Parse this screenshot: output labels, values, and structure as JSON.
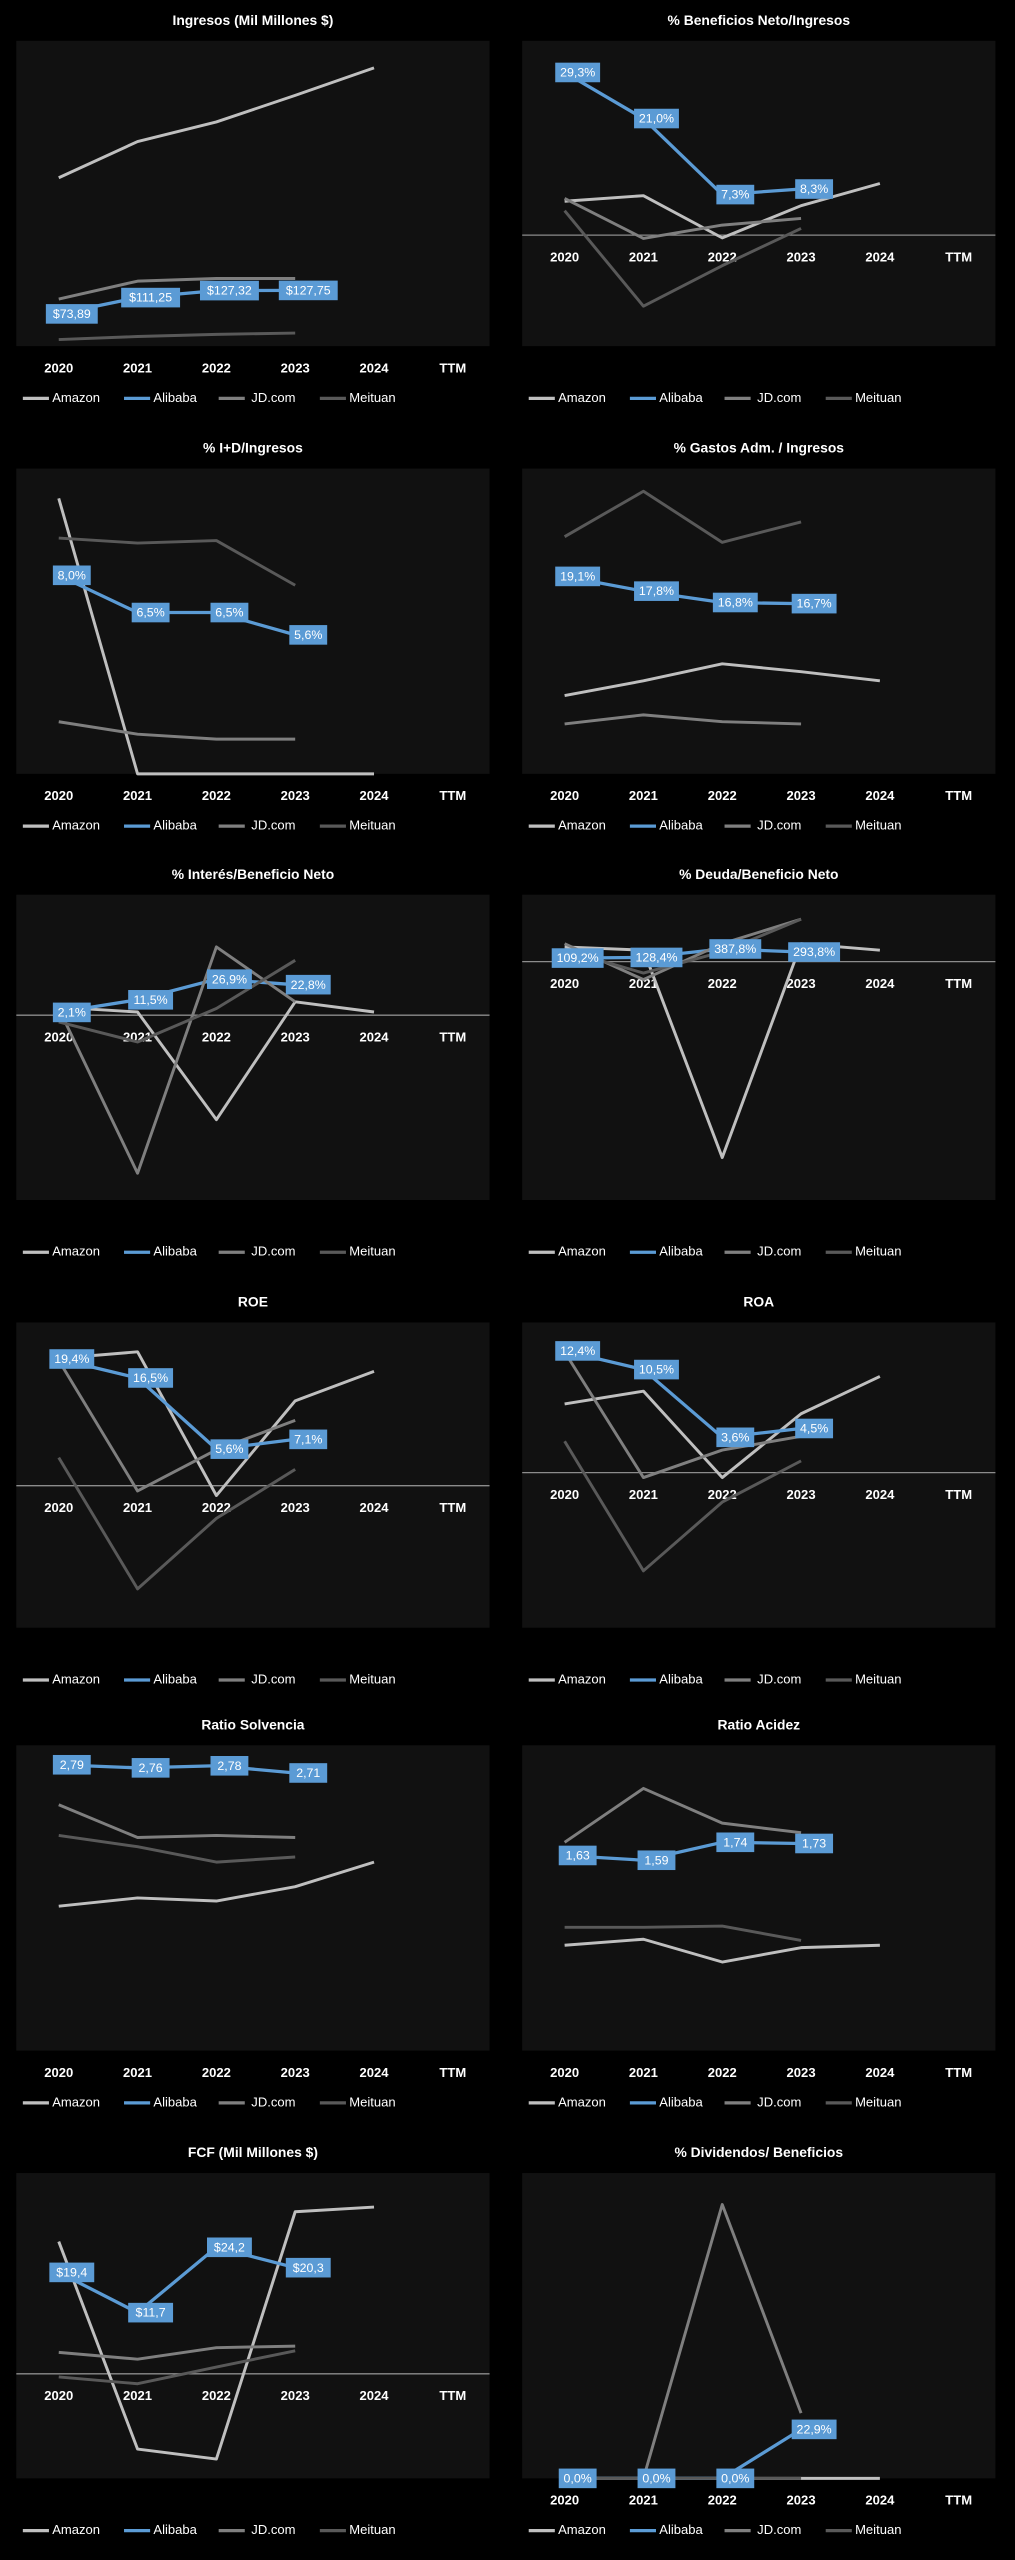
{
  "chart_data": [
    {
      "type": "line",
      "title": "Ingresos (Mil Millones $)",
      "categories": [
        "2020",
        "2021",
        "2022",
        "2023",
        "2024",
        "TTM"
      ],
      "ylim": [
        0,
        700
      ],
      "series": [
        {
          "name": "Amazon",
          "color": "#bfbfbf",
          "values": [
            386,
            469,
            514,
            575,
            638,
            null
          ]
        },
        {
          "name": "Alibaba",
          "color": "#5b9bd5",
          "values": [
            73.89,
            111.25,
            127.32,
            127.75,
            null,
            null
          ],
          "value_labels": [
            "$73,89",
            "$111,25",
            "$127,32",
            "$127,75",
            null,
            null
          ]
        },
        {
          "name": "JD.com",
          "color": "#7f7f7f",
          "values": [
            108,
            149,
            155,
            155,
            null,
            null
          ]
        },
        {
          "name": "Meituan",
          "color": "#595959",
          "values": [
            15,
            22,
            27,
            30,
            null,
            null
          ]
        }
      ]
    },
    {
      "type": "line",
      "title": "% Beneficios Neto/Ingresos",
      "categories": [
        "2020",
        "2021",
        "2022",
        "2023",
        "2024",
        "TTM"
      ],
      "ylim": [
        -20,
        35
      ],
      "series": [
        {
          "name": "Amazon",
          "color": "#bfbfbf",
          "values": [
            6.1,
            7.1,
            -0.5,
            5.3,
            9.3,
            null
          ]
        },
        {
          "name": "Alibaba",
          "color": "#5b9bd5",
          "values": [
            29.3,
            21.0,
            7.3,
            8.3,
            null,
            null
          ],
          "value_labels": [
            "29,3%",
            "21,0%",
            "7,3%",
            "8,3%",
            null,
            null
          ]
        },
        {
          "name": "JD.com",
          "color": "#7f7f7f",
          "values": [
            6.6,
            -0.6,
            1.8,
            3.0,
            null,
            null
          ]
        },
        {
          "name": "Meituan",
          "color": "#595959",
          "values": [
            4.4,
            -12.8,
            -5.5,
            1.2,
            null,
            null
          ]
        }
      ]
    },
    {
      "type": "line",
      "title": "% I+D/Ingresos",
      "categories": [
        "2020",
        "2021",
        "2022",
        "2023",
        "2024",
        "TTM"
      ],
      "ylim": [
        0,
        12.3
      ],
      "series": [
        {
          "name": "Amazon",
          "color": "#bfbfbf",
          "values": [
            11.1,
            0,
            0,
            0,
            0,
            null
          ]
        },
        {
          "name": "Alibaba",
          "color": "#5b9bd5",
          "values": [
            8.0,
            6.5,
            6.5,
            5.6,
            null,
            null
          ],
          "value_labels": [
            "8,0%",
            "6,5%",
            "6,5%",
            "5,6%",
            null,
            null
          ]
        },
        {
          "name": "JD.com",
          "color": "#7f7f7f",
          "values": [
            2.1,
            1.6,
            1.4,
            1.4,
            null,
            null
          ]
        },
        {
          "name": "Meituan",
          "color": "#595959",
          "values": [
            9.5,
            9.3,
            9.4,
            7.6,
            null,
            null
          ]
        }
      ]
    },
    {
      "type": "line",
      "title": "% Gastos Adm. / Ingresos",
      "categories": [
        "2020",
        "2021",
        "2022",
        "2023",
        "2024",
        "TTM"
      ],
      "ylim": [
        1.7,
        28.6
      ],
      "series": [
        {
          "name": "Amazon",
          "color": "#bfbfbf",
          "values": [
            8.6,
            9.9,
            11.4,
            10.7,
            9.9,
            null
          ]
        },
        {
          "name": "Alibaba",
          "color": "#5b9bd5",
          "values": [
            19.1,
            17.8,
            16.8,
            16.7,
            null,
            null
          ],
          "value_labels": [
            "19,1%",
            "17,8%",
            "16,8%",
            "16,7%",
            null,
            null
          ]
        },
        {
          "name": "JD.com",
          "color": "#7f7f7f",
          "values": [
            6.1,
            6.9,
            6.3,
            6.1,
            null,
            null
          ]
        },
        {
          "name": "Meituan",
          "color": "#595959",
          "values": [
            22.6,
            26.6,
            22.1,
            23.9,
            null,
            null
          ]
        }
      ]
    },
    {
      "type": "line",
      "title": "% Interés/Beneficio  Neto",
      "categories": [
        "2020",
        "2021",
        "2022",
        "2023",
        "2024",
        "TTM"
      ],
      "ylim": [
        -138,
        90
      ],
      "series": [
        {
          "name": "Amazon",
          "color": "#bfbfbf",
          "values": [
            6,
            2.4,
            -78,
            10,
            2.4,
            null
          ]
        },
        {
          "name": "Alibaba",
          "color": "#5b9bd5",
          "values": [
            2.1,
            11.5,
            26.9,
            22.8,
            null,
            null
          ],
          "value_labels": [
            "2,1%",
            "11,5%",
            "26,9%",
            "22,8%",
            null,
            null
          ]
        },
        {
          "name": "JD.com",
          "color": "#7f7f7f",
          "values": [
            5,
            -118,
            51,
            10,
            null,
            null
          ]
        },
        {
          "name": "Meituan",
          "color": "#595959",
          "values": [
            -5,
            -20,
            5,
            41,
            null,
            null
          ]
        }
      ]
    },
    {
      "type": "line",
      "title": "% Deuda/Beneficio  Neto",
      "categories": [
        "2020",
        "2021",
        "2022",
        "2023",
        "2024",
        "TTM"
      ],
      "ylim": [
        -7300,
        2050
      ],
      "series": [
        {
          "name": "Amazon",
          "color": "#bfbfbf",
          "values": [
            450,
            350,
            -6000,
            550,
            350,
            null
          ]
        },
        {
          "name": "Alibaba",
          "color": "#5b9bd5",
          "values": [
            109.2,
            128.4,
            387.8,
            293.8,
            null,
            null
          ],
          "value_labels": [
            "109,2%",
            "128,4%",
            "387,8%",
            "293,8%",
            null,
            null
          ]
        },
        {
          "name": "JD.com",
          "color": "#7f7f7f",
          "values": [
            550,
            -550,
            550,
            1300,
            null,
            null
          ]
        },
        {
          "name": "Meituan",
          "color": "#595959",
          "values": [
            350,
            -350,
            300,
            1300,
            null,
            null
          ]
        }
      ]
    },
    {
      "type": "line",
      "title": "ROE",
      "categories": [
        "2020",
        "2021",
        "2022",
        "2023",
        "2024",
        "TTM"
      ],
      "ylim": [
        -21.75,
        25
      ],
      "series": [
        {
          "name": "Amazon",
          "color": "#bfbfbf",
          "values": [
            19.5,
            20.5,
            -1.5,
            13,
            17.5,
            null
          ]
        },
        {
          "name": "Alibaba",
          "color": "#5b9bd5",
          "values": [
            19.4,
            16.5,
            5.6,
            7.1,
            null,
            null
          ],
          "value_labels": [
            "19,4%",
            "16,5%",
            "5,6%",
            "7,1%",
            null,
            null
          ]
        },
        {
          "name": "JD.com",
          "color": "#7f7f7f",
          "values": [
            19.2,
            -0.8,
            5.5,
            10,
            null,
            null
          ]
        },
        {
          "name": "Meituan",
          "color": "#595959",
          "values": [
            4.3,
            -15.8,
            -5,
            2.5,
            null,
            null
          ]
        }
      ]
    },
    {
      "type": "line",
      "title": "ROA",
      "categories": [
        "2020",
        "2021",
        "2022",
        "2023",
        "2024",
        "TTM"
      ],
      "ylim": [
        -15.8,
        15.3
      ],
      "series": [
        {
          "name": "Amazon",
          "color": "#bfbfbf",
          "values": [
            7,
            8.3,
            -0.5,
            6,
            9.8,
            null
          ]
        },
        {
          "name": "Alibaba",
          "color": "#5b9bd5",
          "values": [
            12.4,
            10.5,
            3.6,
            4.5,
            null,
            null
          ],
          "value_labels": [
            "12,4%",
            "10,5%",
            "3,6%",
            "4,5%",
            null,
            null
          ]
        },
        {
          "name": "JD.com",
          "color": "#7f7f7f",
          "values": [
            12.3,
            -0.5,
            2.3,
            3.7,
            null,
            null
          ]
        },
        {
          "name": "Meituan",
          "color": "#595959",
          "values": [
            3.2,
            -10,
            -3,
            1.2,
            null,
            null
          ]
        }
      ]
    },
    {
      "type": "line",
      "title": "Ratio Solvencia",
      "categories": [
        "2020",
        "2021",
        "2022",
        "2023",
        "2024",
        "TTM"
      ],
      "ylim": [
        0,
        2.98
      ],
      "series": [
        {
          "name": "Amazon",
          "color": "#bfbfbf",
          "values": [
            1.41,
            1.49,
            1.46,
            1.6,
            1.84,
            null
          ]
        },
        {
          "name": "Alibaba",
          "color": "#5b9bd5",
          "values": [
            2.79,
            2.76,
            2.78,
            2.71,
            null,
            null
          ],
          "value_labels": [
            "2,79",
            "2,76",
            "2,78",
            "2,71",
            null,
            null
          ]
        },
        {
          "name": "JD.com",
          "color": "#7f7f7f",
          "values": [
            2.4,
            2.08,
            2.1,
            2.08,
            null,
            null
          ]
        },
        {
          "name": "Meituan",
          "color": "#595959",
          "values": [
            2.1,
            1.99,
            1.84,
            1.89,
            null,
            null
          ]
        }
      ]
    },
    {
      "type": "line",
      "title": "Ratio Acidez",
      "categories": [
        "2020",
        "2021",
        "2022",
        "2023",
        "2024",
        "TTM"
      ],
      "ylim": [
        0,
        2.55
      ],
      "series": [
        {
          "name": "Amazon",
          "color": "#bfbfbf",
          "values": [
            0.88,
            0.93,
            0.74,
            0.86,
            0.88,
            null
          ]
        },
        {
          "name": "Alibaba",
          "color": "#5b9bd5",
          "values": [
            1.63,
            1.59,
            1.74,
            1.73,
            null,
            null
          ],
          "value_labels": [
            "1,63",
            "1,59",
            "1,74",
            "1,73",
            null,
            null
          ]
        },
        {
          "name": "JD.com",
          "color": "#7f7f7f",
          "values": [
            1.74,
            2.19,
            1.9,
            1.82,
            null,
            null
          ]
        },
        {
          "name": "Meituan",
          "color": "#595959",
          "values": [
            1.03,
            1.03,
            1.04,
            0.92,
            null,
            null
          ]
        }
      ]
    },
    {
      "type": "line",
      "title": "FCF (Mil Millones $)",
      "categories": [
        "2020",
        "2021",
        "2022",
        "2023",
        "2024",
        "TTM"
      ],
      "ylim": [
        -20,
        38.4
      ],
      "series": [
        {
          "name": "Amazon",
          "color": "#bfbfbf",
          "values": [
            25.3,
            -14.4,
            -16.3,
            31,
            31.9,
            null
          ]
        },
        {
          "name": "Alibaba",
          "color": "#5b9bd5",
          "values": [
            19.4,
            11.7,
            24.2,
            20.3,
            null,
            null
          ],
          "value_labels": [
            "$19,4",
            "$11,7",
            "$24,2",
            "$20,3",
            null,
            null
          ]
        },
        {
          "name": "JD.com",
          "color": "#7f7f7f",
          "values": [
            4.1,
            2.8,
            5,
            5.3,
            null,
            null
          ]
        },
        {
          "name": "Meituan",
          "color": "#595959",
          "values": [
            -0.6,
            -1.9,
            1.3,
            4.4,
            null,
            null
          ]
        }
      ]
    },
    {
      "type": "line",
      "title": "% Dividendos/  Beneficios",
      "categories": [
        "2020",
        "2021",
        "2022",
        "2023",
        "2024",
        "TTM"
      ],
      "ylim": [
        0,
        142.7
      ],
      "series": [
        {
          "name": "Amazon",
          "color": "#bfbfbf",
          "values": [
            0,
            0,
            0,
            0,
            0,
            null
          ]
        },
        {
          "name": "Alibaba",
          "color": "#5b9bd5",
          "values": [
            0,
            0,
            0,
            22.9,
            null,
            null
          ],
          "value_labels": [
            "0,0%",
            "0,0%",
            "0,0%",
            "22,9%",
            null,
            null
          ]
        },
        {
          "name": "JD.com",
          "color": "#7f7f7f",
          "values": [
            0,
            0,
            128,
            30.5,
            null,
            null
          ]
        },
        {
          "name": "Meituan",
          "color": "#595959",
          "values": [
            0,
            0,
            0,
            0,
            null,
            null
          ]
        }
      ]
    }
  ]
}
